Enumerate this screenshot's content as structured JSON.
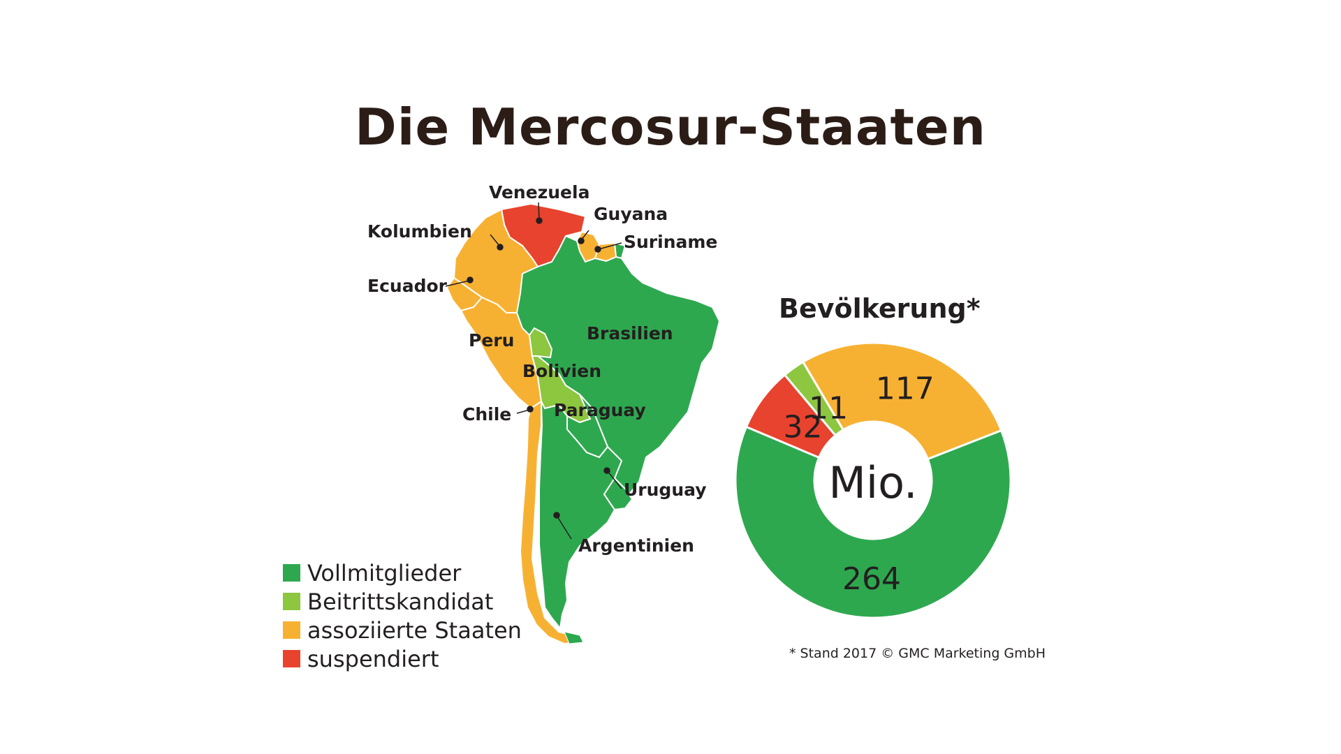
{
  "title": "Die Mercosur-Staaten",
  "colors": {
    "vollmitglieder": "#2ea84f",
    "beitrittskandidat": "#8dc63f",
    "assoziiert": "#f7b132",
    "suspendiert": "#e8432e",
    "text": "#231f20"
  },
  "map": {
    "countries": [
      {
        "name": "Venezuela",
        "status": "suspendiert"
      },
      {
        "name": "Guyana",
        "status": "assoziiert"
      },
      {
        "name": "Suriname",
        "status": "assoziiert"
      },
      {
        "name": "Kolumbien",
        "status": "assoziiert"
      },
      {
        "name": "Ecuador",
        "status": "assoziiert"
      },
      {
        "name": "Peru",
        "status": "assoziiert"
      },
      {
        "name": "Brasilien",
        "status": "vollmitglieder"
      },
      {
        "name": "Bolivien",
        "status": "beitrittskandidat"
      },
      {
        "name": "Paraguay",
        "status": "vollmitglieder"
      },
      {
        "name": "Chile",
        "status": "assoziiert"
      },
      {
        "name": "Uruguay",
        "status": "vollmitglieder"
      },
      {
        "name": "Argentinien",
        "status": "vollmitglieder"
      }
    ]
  },
  "legend": {
    "items": [
      {
        "label": "Vollmitglieder",
        "color": "#2ea84f"
      },
      {
        "label": "Beitrittskandidat",
        "color": "#8dc63f"
      },
      {
        "label": "assoziierte Staaten",
        "color": "#f7b132"
      },
      {
        "label": "suspendiert",
        "color": "#e8432e"
      }
    ]
  },
  "chart_data": {
    "type": "pie",
    "title": "Bevölkerung*",
    "center_label": "Mio.",
    "slices": [
      {
        "label": "assoziierte Staaten",
        "value": 117,
        "color": "#f7b132"
      },
      {
        "label": "Vollmitglieder",
        "value": 264,
        "color": "#2ea84f"
      },
      {
        "label": "suspendiert",
        "value": 32,
        "color": "#e8432e"
      },
      {
        "label": "Beitrittskandidat",
        "value": 11,
        "color": "#8dc63f"
      }
    ]
  },
  "footnote": "* Stand 2017  © GMC Marketing GmbH"
}
